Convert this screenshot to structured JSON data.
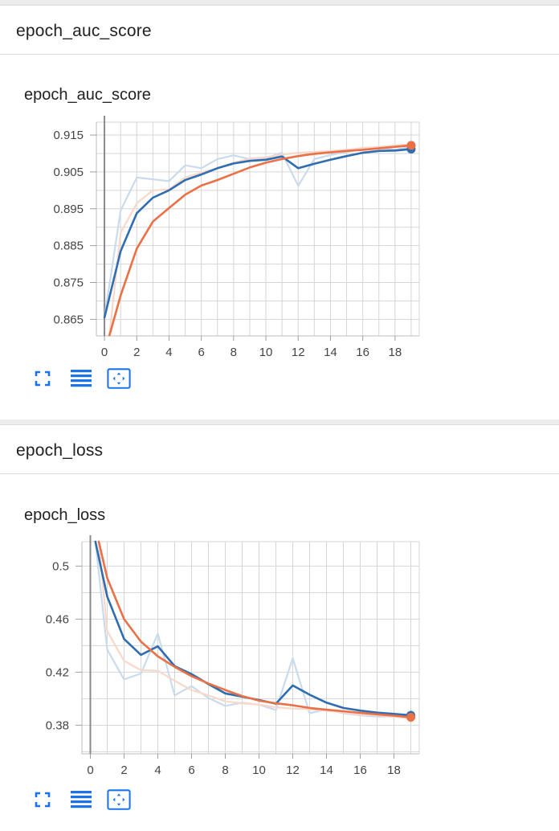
{
  "sections": [
    {
      "header_title": "epoch_auc_score",
      "card_title": "epoch_auc_score",
      "toolbar": {
        "fullscreen": "fullscreen-icon",
        "data_table": "data-table-icon",
        "fit_domain": "fit-domain-icon"
      }
    },
    {
      "header_title": "epoch_loss",
      "card_title": "epoch_loss",
      "toolbar": {
        "fullscreen": "fullscreen-icon",
        "data_table": "data-table-icon",
        "fit_domain": "fit-domain-icon"
      }
    }
  ],
  "colors": {
    "blue": "#2f6db0",
    "orange": "#ea7045",
    "blue_raw": "#c9dbec",
    "orange_raw": "#f8d8c9",
    "grid": "#d6d6d6",
    "icon": "#1a73e8"
  },
  "chart_data": [
    {
      "type": "line",
      "title": "",
      "xlabel": "",
      "ylabel": "",
      "xlim": [
        -0.5,
        19.5
      ],
      "ylim": [
        0.8605,
        0.9185
      ],
      "xticks": [
        0,
        2,
        4,
        6,
        8,
        10,
        12,
        14,
        16,
        18
      ],
      "yticks": [
        0.865,
        0.875,
        0.885,
        0.895,
        0.905,
        0.915
      ],
      "ytick_labels": [
        "0.865",
        "0.875",
        "0.885",
        "0.895",
        "0.905",
        "0.915"
      ],
      "grid": true,
      "series": [
        {
          "color": "blue",
          "smoothed": true,
          "x": [
            0,
            1,
            2,
            3,
            4,
            5,
            6,
            7,
            8,
            9,
            10,
            11,
            12,
            13,
            14,
            15,
            16,
            17,
            18,
            19
          ],
          "y": [
            0.8655,
            0.8835,
            0.8938,
            0.898,
            0.9,
            0.9028,
            0.9043,
            0.906,
            0.9073,
            0.908,
            0.9083,
            0.9092,
            0.906,
            0.9072,
            0.9083,
            0.9093,
            0.9102,
            0.9107,
            0.9108,
            0.9112
          ]
        },
        {
          "color": "orange",
          "smoothed": true,
          "x": [
            0.3,
            1,
            2,
            3,
            4,
            5,
            6,
            7,
            8,
            9,
            10,
            11,
            12,
            13,
            14,
            15,
            16,
            17,
            18,
            19
          ],
          "y": [
            0.8605,
            0.8715,
            0.8842,
            0.8915,
            0.8952,
            0.8988,
            0.9013,
            0.9028,
            0.9045,
            0.9062,
            0.9075,
            0.9085,
            0.9093,
            0.9099,
            0.9103,
            0.9107,
            0.911,
            0.9114,
            0.9118,
            0.9122
          ]
        },
        {
          "color": "blue_raw",
          "smoothed": false,
          "x": [
            0,
            1,
            2,
            3,
            4,
            5,
            6,
            7,
            8,
            9,
            10,
            11,
            12,
            13,
            14,
            15,
            16,
            17,
            18,
            19
          ],
          "y": [
            0.8655,
            0.8945,
            0.9035,
            0.903,
            0.9025,
            0.9068,
            0.906,
            0.9085,
            0.9095,
            0.9085,
            0.9087,
            0.9102,
            0.9012,
            0.9085,
            0.9096,
            0.9104,
            0.9112,
            0.9115,
            0.911,
            0.9118
          ]
        },
        {
          "color": "orange_raw",
          "smoothed": false,
          "x": [
            0.3,
            1,
            2,
            3,
            4,
            5,
            6,
            7,
            8,
            9,
            10,
            11,
            12,
            13,
            14,
            15,
            16,
            17,
            18,
            19
          ],
          "y": [
            0.8605,
            0.8885,
            0.8965,
            0.9,
            0.9002,
            0.9035,
            0.9048,
            0.906,
            0.9075,
            0.9086,
            0.909,
            0.9097,
            0.9102,
            0.9104,
            0.9107,
            0.911,
            0.9115,
            0.9118,
            0.9122,
            0.9125
          ]
        }
      ]
    },
    {
      "type": "line",
      "title": "",
      "xlabel": "",
      "ylabel": "",
      "xlim": [
        -0.5,
        19.5
      ],
      "ylim": [
        0.3584,
        0.5184
      ],
      "xticks": [
        0,
        2,
        4,
        6,
        8,
        10,
        12,
        14,
        16,
        18
      ],
      "yticks": [
        0.38,
        0.42,
        0.46,
        0.5
      ],
      "ytick_labels": [
        "0.38",
        "0.42",
        "0.46",
        "0.5"
      ],
      "grid": true,
      "series": [
        {
          "color": "blue",
          "smoothed": true,
          "x": [
            0.3,
            1,
            2,
            3,
            4,
            5,
            6,
            7,
            8,
            9,
            10,
            11,
            12,
            13,
            14,
            15,
            16,
            17,
            18,
            19
          ],
          "y": [
            0.5184,
            0.477,
            0.445,
            0.433,
            0.4395,
            0.4245,
            0.4185,
            0.411,
            0.404,
            0.4015,
            0.399,
            0.3962,
            0.41,
            0.403,
            0.397,
            0.393,
            0.391,
            0.3895,
            0.3885,
            0.3875
          ]
        },
        {
          "color": "orange",
          "smoothed": true,
          "x": [
            0.5,
            1,
            2,
            3,
            4,
            5,
            6,
            7,
            8,
            9,
            10,
            11,
            12,
            13,
            14,
            15,
            16,
            17,
            18,
            19
          ],
          "y": [
            0.5184,
            0.491,
            0.46,
            0.443,
            0.432,
            0.424,
            0.417,
            0.4115,
            0.4065,
            0.402,
            0.3985,
            0.3965,
            0.395,
            0.393,
            0.3917,
            0.3905,
            0.3893,
            0.3882,
            0.3872,
            0.386
          ]
        },
        {
          "color": "blue_raw",
          "smoothed": false,
          "x": [
            0.3,
            1,
            2,
            3,
            4,
            5,
            6,
            7,
            8,
            9,
            10,
            11,
            12,
            13,
            14,
            15,
            16,
            17,
            18,
            19
          ],
          "y": [
            0.5184,
            0.437,
            0.4145,
            0.419,
            0.449,
            0.4025,
            0.4095,
            0.4005,
            0.3945,
            0.397,
            0.3955,
            0.3915,
            0.4305,
            0.389,
            0.392,
            0.389,
            0.3875,
            0.3865,
            0.3865,
            0.386
          ]
        },
        {
          "color": "orange_raw",
          "smoothed": false,
          "x": [
            0.5,
            1,
            2,
            3,
            4,
            5,
            6,
            7,
            8,
            9,
            10,
            11,
            12,
            13,
            14,
            15,
            16,
            17,
            18,
            19
          ],
          "y": [
            0.5184,
            0.451,
            0.4285,
            0.4215,
            0.421,
            0.4135,
            0.4065,
            0.4025,
            0.398,
            0.3965,
            0.3955,
            0.3935,
            0.3925,
            0.392,
            0.391,
            0.3895,
            0.388,
            0.3875,
            0.3865,
            0.385
          ]
        }
      ]
    }
  ]
}
